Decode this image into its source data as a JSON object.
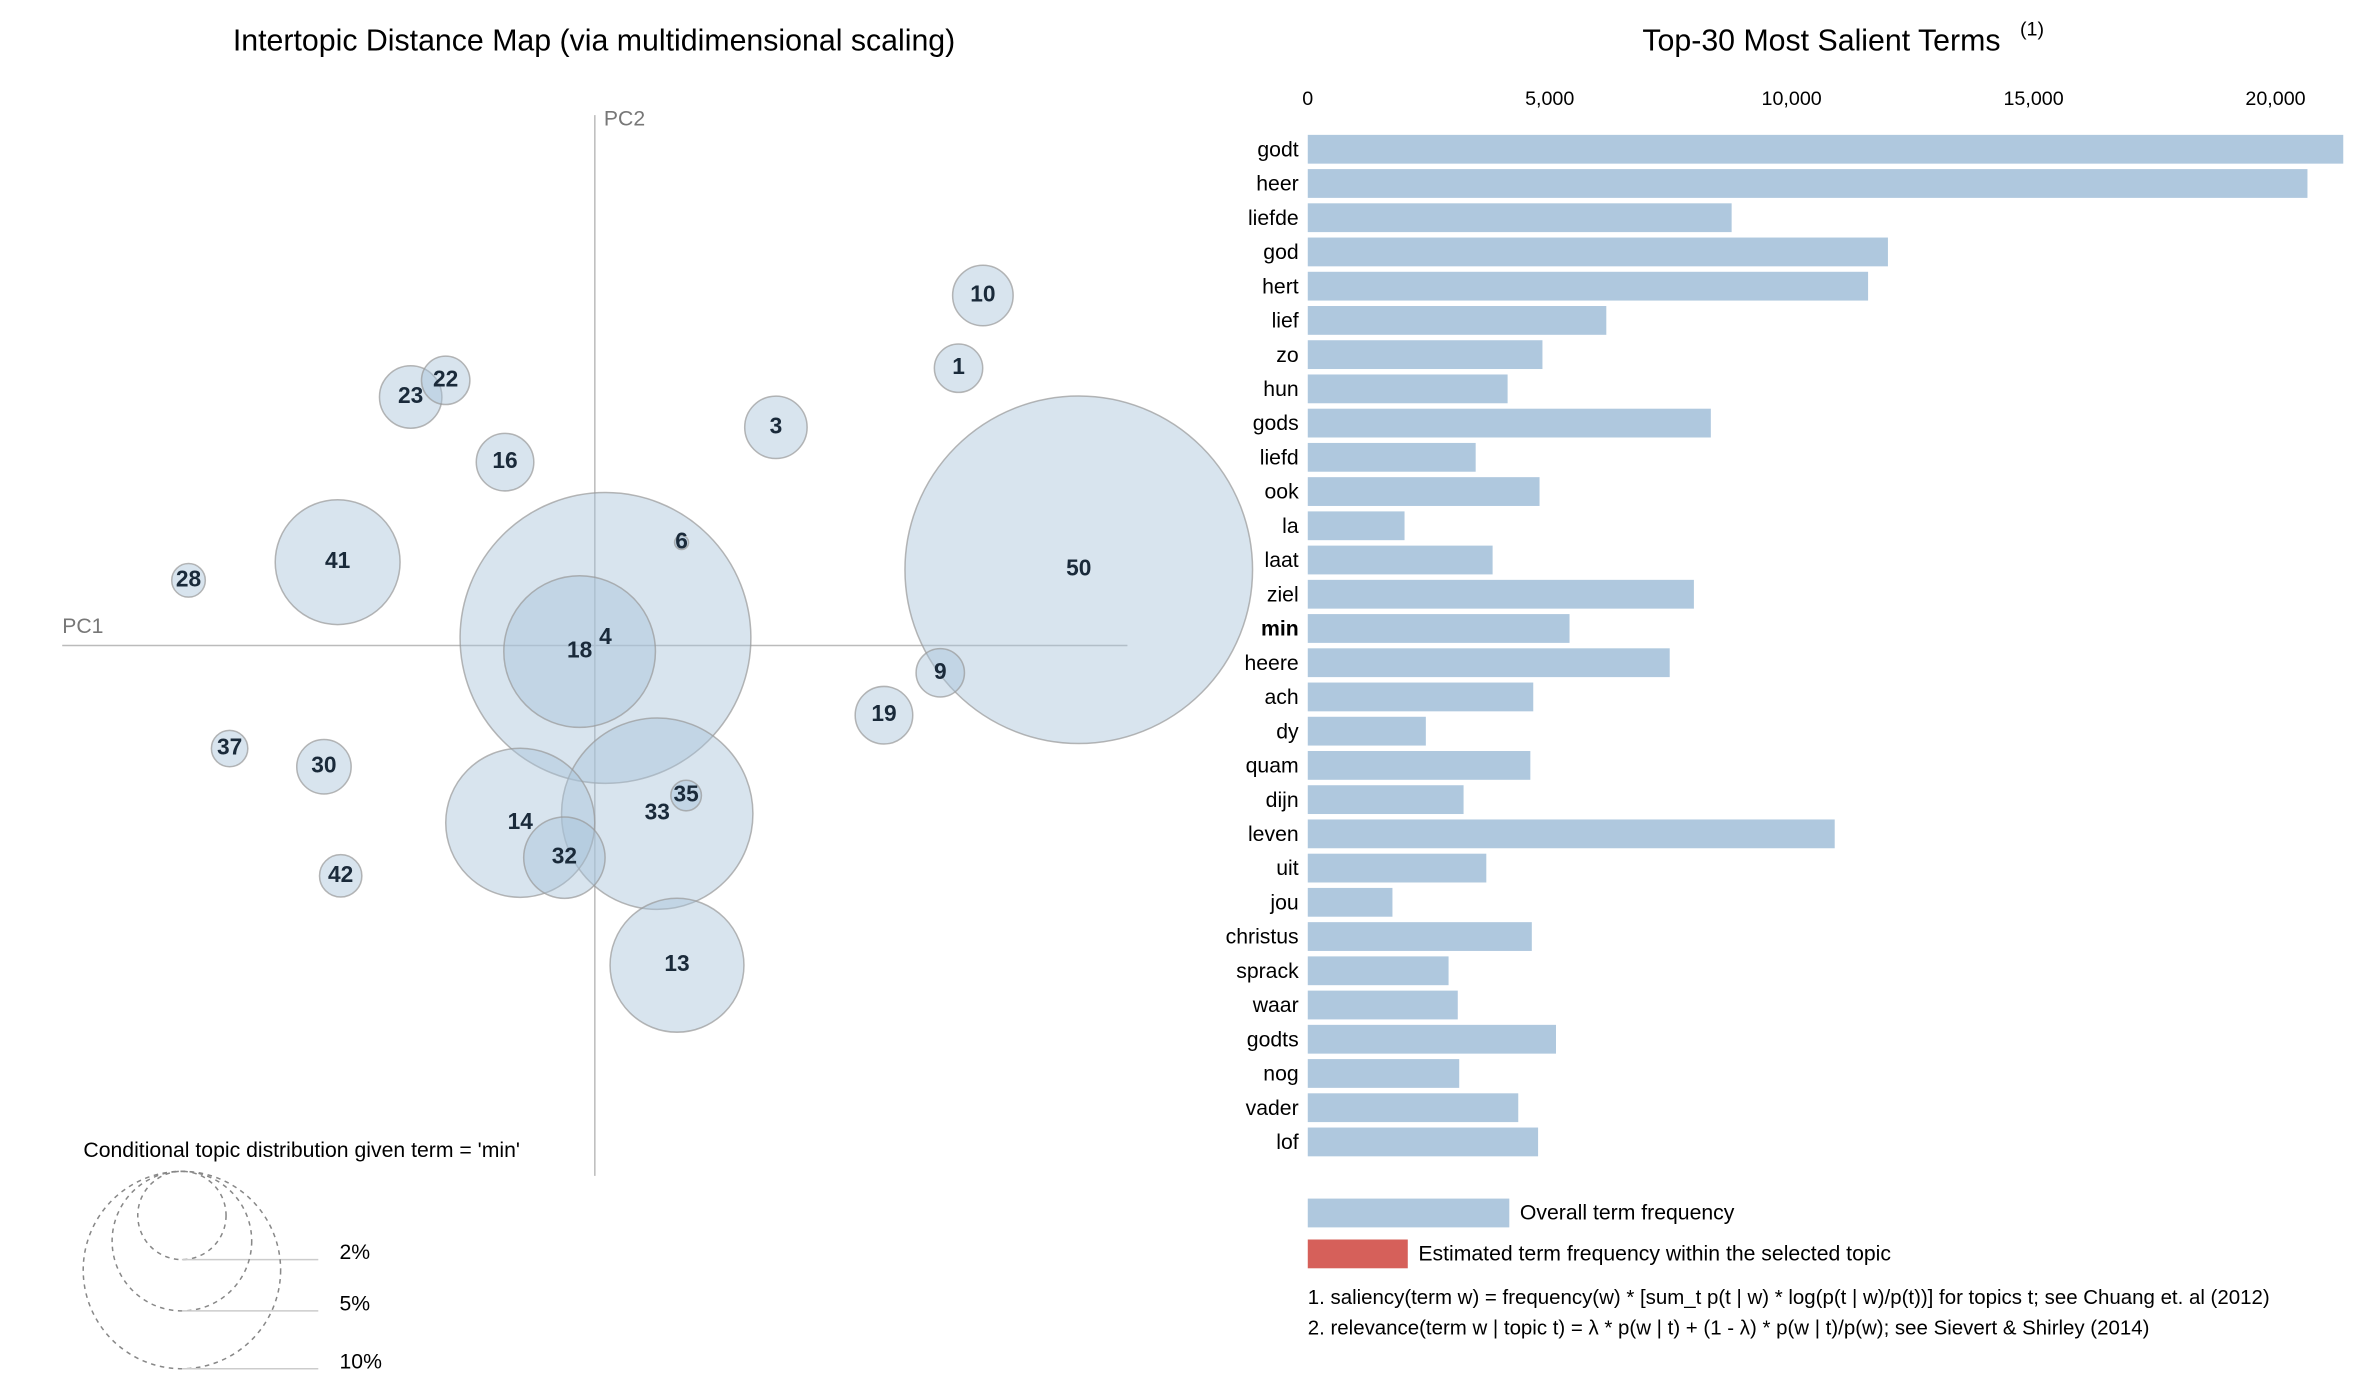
{
  "chart_data": [
    {
      "type": "bubble",
      "title": "Intertopic Distance Map (via multidimensional scaling)",
      "xlabel": "PC1",
      "ylabel": "PC2",
      "xlim": [
        -0.35,
        0.35
      ],
      "ylim": [
        -0.35,
        0.35
      ],
      "labels": [
        1,
        3,
        4,
        6,
        9,
        10,
        13,
        14,
        16,
        18,
        19,
        22,
        23,
        28,
        30,
        32,
        33,
        35,
        37,
        41,
        42,
        50
      ],
      "x": [
        0.239,
        0.119,
        0.007,
        0.057,
        0.227,
        0.255,
        0.054,
        -0.049,
        -0.059,
        -0.01,
        0.19,
        -0.098,
        -0.121,
        -0.267,
        -0.178,
        -0.02,
        0.041,
        0.06,
        -0.24,
        -0.169,
        -0.167,
        0.318
      ],
      "y": [
        0.183,
        0.144,
        0.005,
        0.068,
        -0.018,
        0.231,
        -0.211,
        -0.117,
        0.121,
        -0.004,
        -0.046,
        0.175,
        0.164,
        0.043,
        -0.08,
        -0.14,
        -0.111,
        -0.099,
        -0.068,
        0.055,
        -0.152,
        0.05
      ],
      "sizes": [
        0.6,
        1.0,
        21.7,
        0.05,
        0.6,
        0.94,
        4.6,
        5.7,
        0.85,
        5.9,
        0.85,
        0.6,
        1.0,
        0.29,
        0.76,
        1.7,
        9.4,
        0.24,
        0.34,
        4.0,
        0.46,
        31
      ],
      "color": "#a9c3da",
      "size_legend_title": "Conditional topic distribution given term = 'min'",
      "size_legend": [
        {
          "value": 2,
          "label": "2%"
        },
        {
          "value": 5,
          "label": "5%"
        },
        {
          "value": 10,
          "label": "10%"
        }
      ]
    },
    {
      "type": "barh",
      "title": "Top-30 Most Salient Terms",
      "title_note": "(1)",
      "categories": [
        "godt",
        "heer",
        "liefde",
        "god",
        "hert",
        "lief",
        "zo",
        "hun",
        "gods",
        "liefd",
        "ook",
        "la",
        "laat",
        "ziel",
        "min",
        "heere",
        "ach",
        "dy",
        "quam",
        "dijn",
        "leven",
        "uit",
        "jou",
        "christus",
        "sprack",
        "waar",
        "godts",
        "nog",
        "vader",
        "lof"
      ],
      "values": [
        21400,
        20660,
        8760,
        11990,
        11580,
        6170,
        4850,
        4130,
        8330,
        3470,
        4790,
        2000,
        3820,
        7980,
        5410,
        7480,
        4660,
        2440,
        4600,
        3220,
        10890,
        3690,
        1750,
        4630,
        2910,
        3100,
        5130,
        3130,
        4350,
        4760
      ],
      "highlight": "min",
      "color": "#afc8de",
      "xlim": [
        0,
        21420
      ],
      "xticks": [
        0,
        {
          "value": 5000,
          "label": "5,000"
        },
        {
          "value": 10000,
          "label": "10,000"
        },
        {
          "value": 15000,
          "label": "15,000"
        },
        {
          "value": 20000,
          "label": "20,000"
        }
      ],
      "legend": [
        {
          "name": "Overall term frequency",
          "color": "#afc8de"
        },
        {
          "name": "Estimated term frequency within the selected topic",
          "color": "#d6605a"
        }
      ],
      "footnotes": [
        "1. saliency(term w) = frequency(w) * [sum_t p(t | w) * log(p(t | w)/p(t))] for topics t; see Chuang et. al (2012)",
        "2. relevance(term w | topic t) = λ * p(w | t) + (1 - λ) * p(w | t)/p(w); see Sievert & Shirley (2014)"
      ]
    }
  ]
}
